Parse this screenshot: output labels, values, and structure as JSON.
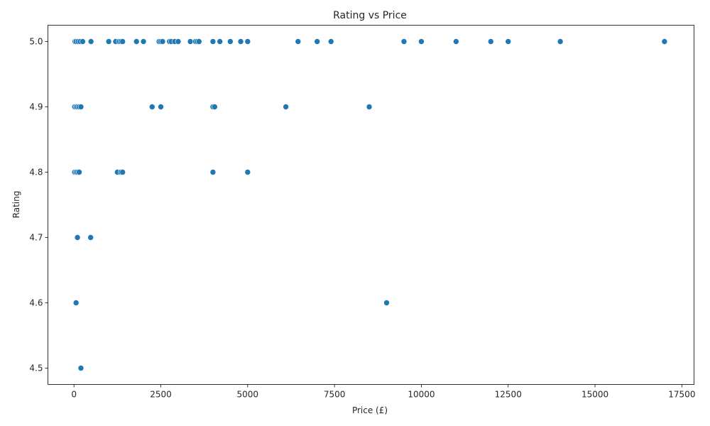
{
  "chart_data": {
    "type": "scatter",
    "title": "Rating vs Price",
    "xlabel": "Price (£)",
    "ylabel": "Rating",
    "xlim": [
      -750,
      17850
    ],
    "ylim": [
      4.475,
      5.025
    ],
    "xticks": [
      0,
      2500,
      5000,
      7500,
      10000,
      12500,
      15000,
      17500
    ],
    "xtick_labels": [
      "0",
      "2500",
      "5000",
      "7500",
      "10000",
      "12500",
      "15000",
      "17500"
    ],
    "yticks": [
      4.5,
      4.6,
      4.7,
      4.8,
      4.9,
      5.0
    ],
    "ytick_labels": [
      "4.5",
      "4.6",
      "4.7",
      "4.8",
      "4.9",
      "5.0"
    ],
    "grid": false,
    "color": "#1f77b4",
    "points": [
      {
        "x": 30,
        "y": 5.0
      },
      {
        "x": 60,
        "y": 5.0
      },
      {
        "x": 120,
        "y": 5.0
      },
      {
        "x": 180,
        "y": 5.0
      },
      {
        "x": 250,
        "y": 5.0
      },
      {
        "x": 490,
        "y": 5.0
      },
      {
        "x": 1000,
        "y": 5.0
      },
      {
        "x": 1200,
        "y": 5.0
      },
      {
        "x": 1300,
        "y": 5.0
      },
      {
        "x": 1350,
        "y": 5.0
      },
      {
        "x": 1400,
        "y": 5.0
      },
      {
        "x": 1800,
        "y": 5.0
      },
      {
        "x": 2000,
        "y": 5.0
      },
      {
        "x": 2450,
        "y": 5.0
      },
      {
        "x": 2500,
        "y": 5.0
      },
      {
        "x": 2550,
        "y": 5.0
      },
      {
        "x": 2750,
        "y": 5.0
      },
      {
        "x": 2800,
        "y": 5.0
      },
      {
        "x": 2900,
        "y": 5.0
      },
      {
        "x": 3000,
        "y": 5.0
      },
      {
        "x": 3350,
        "y": 5.0
      },
      {
        "x": 3500,
        "y": 5.0
      },
      {
        "x": 3550,
        "y": 5.0
      },
      {
        "x": 3600,
        "y": 5.0
      },
      {
        "x": 4000,
        "y": 5.0
      },
      {
        "x": 4200,
        "y": 5.0
      },
      {
        "x": 4500,
        "y": 5.0
      },
      {
        "x": 4800,
        "y": 5.0
      },
      {
        "x": 5000,
        "y": 5.0
      },
      {
        "x": 6450,
        "y": 5.0
      },
      {
        "x": 7000,
        "y": 5.0
      },
      {
        "x": 7400,
        "y": 5.0
      },
      {
        "x": 9500,
        "y": 5.0
      },
      {
        "x": 10000,
        "y": 5.0
      },
      {
        "x": 11000,
        "y": 5.0
      },
      {
        "x": 12000,
        "y": 5.0
      },
      {
        "x": 12500,
        "y": 5.0
      },
      {
        "x": 14000,
        "y": 5.0
      },
      {
        "x": 17000,
        "y": 5.0
      },
      {
        "x": 20,
        "y": 4.9
      },
      {
        "x": 60,
        "y": 4.9
      },
      {
        "x": 100,
        "y": 4.9
      },
      {
        "x": 150,
        "y": 4.9
      },
      {
        "x": 200,
        "y": 4.9
      },
      {
        "x": 2250,
        "y": 4.9
      },
      {
        "x": 2500,
        "y": 4.9
      },
      {
        "x": 4000,
        "y": 4.9
      },
      {
        "x": 4050,
        "y": 4.9
      },
      {
        "x": 6100,
        "y": 4.9
      },
      {
        "x": 8500,
        "y": 4.9
      },
      {
        "x": 20,
        "y": 4.8
      },
      {
        "x": 60,
        "y": 4.8
      },
      {
        "x": 100,
        "y": 4.8
      },
      {
        "x": 150,
        "y": 4.8
      },
      {
        "x": 1250,
        "y": 4.8
      },
      {
        "x": 1350,
        "y": 4.8
      },
      {
        "x": 1400,
        "y": 4.8
      },
      {
        "x": 4000,
        "y": 4.8
      },
      {
        "x": 5000,
        "y": 4.8
      },
      {
        "x": 100,
        "y": 4.7
      },
      {
        "x": 480,
        "y": 4.7
      },
      {
        "x": 60,
        "y": 4.6
      },
      {
        "x": 9000,
        "y": 4.6
      },
      {
        "x": 200,
        "y": 4.5
      }
    ]
  }
}
